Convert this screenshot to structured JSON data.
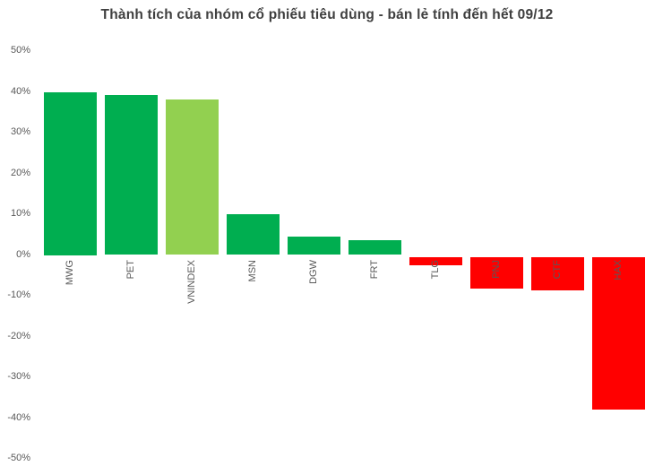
{
  "title": "Thành tích của nhóm cổ phiếu tiêu dùng - bán lẻ tính đến hết 09/12",
  "colors": {
    "positive_bar": "#00AE50",
    "index_bar": "#92D050",
    "negative_bar": "#FF0000",
    "title_text": "#3F3F3F",
    "axis_text": "#595959"
  },
  "chart_data": {
    "type": "bar",
    "title": "Thành tích của nhóm cổ phiếu tiêu dùng - bán lẻ tính đến hết 09/12",
    "categories": [
      "MWG",
      "PET",
      "VNINDEX",
      "MSN",
      "DGW",
      "FRT",
      "TLG",
      "PNJ",
      "CTF",
      "HAX"
    ],
    "values": [
      40.0,
      39.3,
      38.2,
      9.9,
      4.6,
      3.7,
      -2.5,
      -8.2,
      -8.7,
      -38.0
    ],
    "unit": "%",
    "bar_colors": [
      "#00AE50",
      "#00AE50",
      "#92D050",
      "#00AE50",
      "#00AE50",
      "#00AE50",
      "#FF0000",
      "#FF0000",
      "#FF0000",
      "#FF0000"
    ],
    "xlabel": "",
    "ylabel": "",
    "ylim": [
      -50,
      50
    ],
    "ytick_labels": [
      "50%",
      "40%",
      "30%",
      "20%",
      "10%",
      "0%",
      "-10%",
      "-20%",
      "-30%",
      "-40%",
      "-50%"
    ],
    "ytick_values": [
      50,
      40,
      30,
      20,
      10,
      0,
      -10,
      -20,
      -30,
      -40,
      -50
    ],
    "grid": false,
    "legend": false,
    "label_rotation_deg": -90
  }
}
